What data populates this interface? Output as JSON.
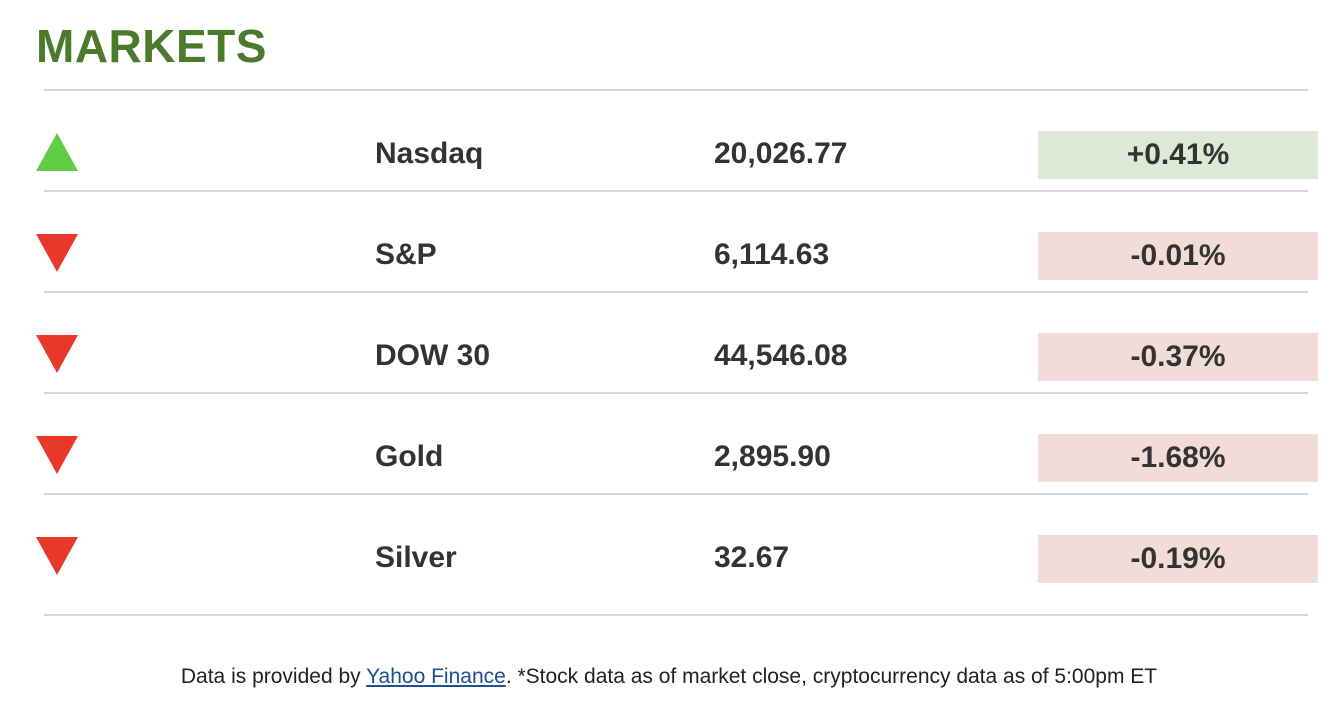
{
  "header": {
    "title": "MARKETS"
  },
  "colors": {
    "title": "#4a7a2c",
    "up_arrow": "#5fce43",
    "down_arrow": "#e8372b",
    "positive_bg": "#dde9d5",
    "negative_bg": "#f2dcd8"
  },
  "rows": [
    {
      "direction": "up",
      "icon": "triangle-up-icon",
      "name": "Nasdaq",
      "value": "20,026.77",
      "change": "+0.41%"
    },
    {
      "direction": "down",
      "icon": "triangle-down-icon",
      "name": "S&P",
      "value": "6,114.63",
      "change": "-0.01%"
    },
    {
      "direction": "down",
      "icon": "triangle-down-icon",
      "name": "DOW 30",
      "value": "44,546.08",
      "change": "-0.37%"
    },
    {
      "direction": "down",
      "icon": "triangle-down-icon",
      "name": "Gold",
      "value": "2,895.90",
      "change": "-1.68%"
    },
    {
      "direction": "down",
      "icon": "triangle-down-icon",
      "name": "Silver",
      "value": "32.67",
      "change": "-0.19%"
    }
  ],
  "footer": {
    "prefix": "Data is provided by ",
    "link_text": "Yahoo Finance",
    "suffix": ". *Stock data as of market close, cryptocurrency data as of 5:00pm ET"
  }
}
